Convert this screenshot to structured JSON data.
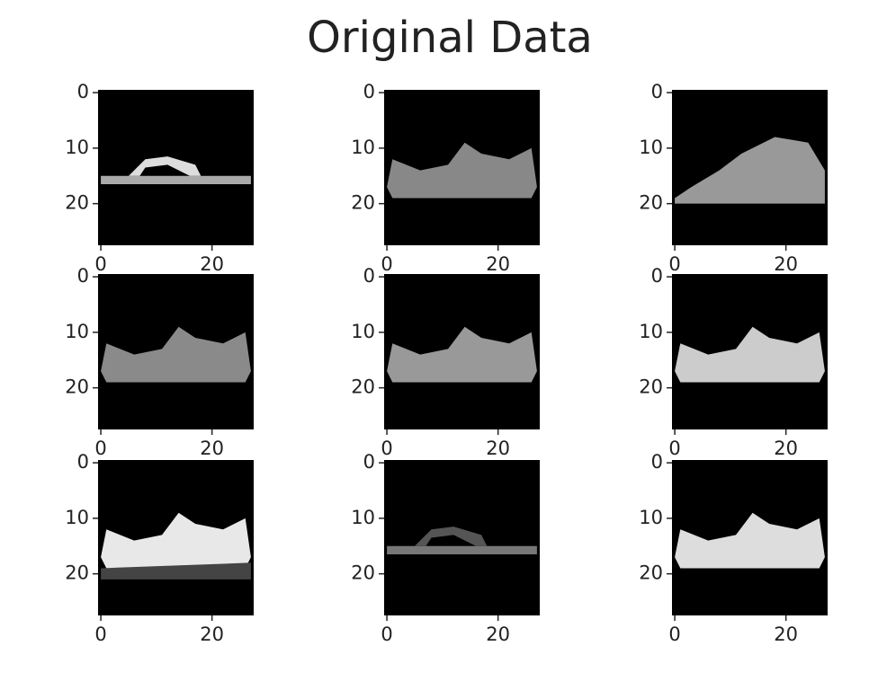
{
  "title": "Original Data",
  "chart_data": [
    {
      "type": "image",
      "xlim": [
        -0.5,
        27.5
      ],
      "ylim": [
        27.5,
        -0.5
      ],
      "xticks": [
        0,
        20
      ],
      "yticks": [
        0,
        10,
        20
      ]
    },
    {
      "type": "image",
      "xlim": [
        -0.5,
        27.5
      ],
      "ylim": [
        27.5,
        -0.5
      ],
      "xticks": [
        0,
        20
      ],
      "yticks": [
        0,
        10,
        20
      ]
    },
    {
      "type": "image",
      "xlim": [
        -0.5,
        27.5
      ],
      "ylim": [
        27.5,
        -0.5
      ],
      "xticks": [
        0,
        20
      ],
      "yticks": [
        0,
        10,
        20
      ]
    },
    {
      "type": "image",
      "xlim": [
        -0.5,
        27.5
      ],
      "ylim": [
        27.5,
        -0.5
      ],
      "xticks": [
        0,
        20
      ],
      "yticks": [
        0,
        10,
        20
      ]
    },
    {
      "type": "image",
      "xlim": [
        -0.5,
        27.5
      ],
      "ylim": [
        27.5,
        -0.5
      ],
      "xticks": [
        0,
        20
      ],
      "yticks": [
        0,
        10,
        20
      ]
    },
    {
      "type": "image",
      "xlim": [
        -0.5,
        27.5
      ],
      "ylim": [
        27.5,
        -0.5
      ],
      "xticks": [
        0,
        20
      ],
      "yticks": [
        0,
        10,
        20
      ]
    },
    {
      "type": "image",
      "xlim": [
        -0.5,
        27.5
      ],
      "ylim": [
        27.5,
        -0.5
      ],
      "xticks": [
        0,
        20
      ],
      "yticks": [
        0,
        10,
        20
      ]
    },
    {
      "type": "image",
      "xlim": [
        -0.5,
        27.5
      ],
      "ylim": [
        27.5,
        -0.5
      ],
      "xticks": [
        0,
        20
      ],
      "yticks": [
        0,
        10,
        20
      ]
    },
    {
      "type": "image",
      "xlim": [
        -0.5,
        27.5
      ],
      "ylim": [
        27.5,
        -0.5
      ],
      "xticks": [
        0,
        20
      ],
      "yticks": [
        0,
        10,
        20
      ]
    }
  ]
}
